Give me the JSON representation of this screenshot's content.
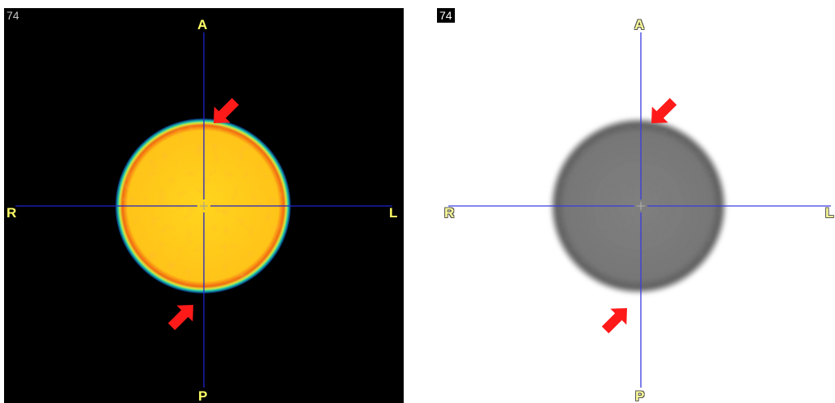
{
  "viewer": {
    "left_view": {
      "colormap": "hot",
      "slice_number": "74",
      "orientation": {
        "anterior": "A",
        "posterior": "P",
        "right": "R",
        "left": "L"
      }
    },
    "right_view": {
      "colormap": "inverted-grayscale",
      "slice_number": "74",
      "orientation": {
        "anterior": "A",
        "posterior": "P",
        "right": "R",
        "left": "L"
      }
    },
    "colors": {
      "crosshair": "#2222cc",
      "arrow": "#ff1a1a",
      "phantom_hot": "#ffd21a",
      "phantom_gray": "#7a7a7a"
    }
  }
}
